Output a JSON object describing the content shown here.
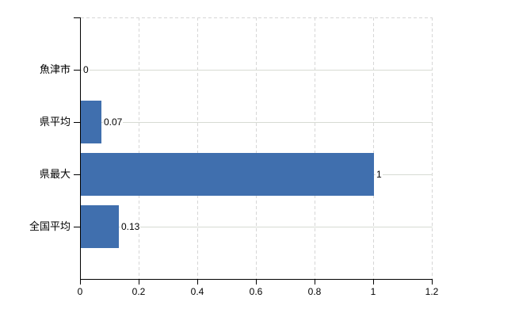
{
  "chart_data": {
    "type": "bar",
    "orientation": "horizontal",
    "title": "",
    "categories": [
      "魚津市",
      "県平均",
      "県最大",
      "全国平均"
    ],
    "values": [
      0,
      0.07,
      1,
      0.13
    ],
    "value_labels": [
      "0",
      "0.07",
      "1",
      "0.13"
    ],
    "xlim": [
      0,
      1.2
    ],
    "x_tick_values": [
      0,
      0.2,
      0.4,
      0.6,
      0.8,
      1,
      1.2
    ],
    "x_tick_labels": [
      "0",
      "0.2",
      "0.4",
      "0.6",
      "0.8",
      "1",
      "1.2"
    ],
    "grid": true,
    "legend": false,
    "gridline_style": "vertical-dashed-horizontal-solid",
    "bar_color": "#406fae",
    "axis_color": "#000000",
    "vertical_gridline_color": "#d6d6d6",
    "horizontal_gridline_color": "#d7dbd3",
    "label_color": "#000000"
  }
}
